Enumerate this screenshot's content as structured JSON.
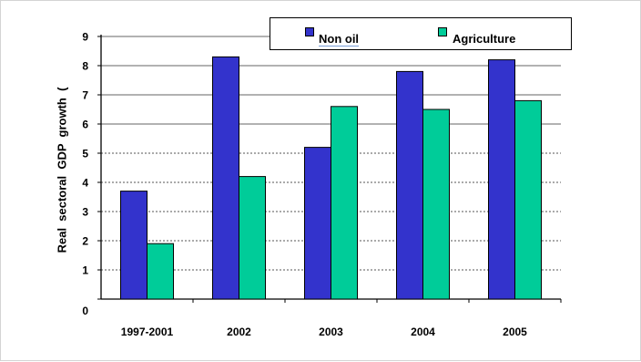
{
  "chart_data": {
    "type": "bar",
    "categories": [
      "1997-2001",
      "2002",
      "2003",
      "2004",
      "2005"
    ],
    "series": [
      {
        "name": "Non  oil",
        "color": "#3333cc",
        "values": [
          3.7,
          8.3,
          5.2,
          7.8,
          8.2
        ]
      },
      {
        "name": "Agriculture",
        "color": "#00cc99",
        "values": [
          1.9,
          4.2,
          6.6,
          6.5,
          6.8
        ]
      }
    ],
    "ylabel": "Real  sectoral  GDP  growth  (",
    "ylim": [
      0,
      9
    ],
    "yticks": [
      "0",
      "1",
      "2",
      "3",
      "4",
      "5",
      "6",
      "7",
      "8",
      "9"
    ],
    "grid": {
      "solid_above": 6,
      "dotted_at_or_below": 5
    },
    "legend": "top-right"
  }
}
